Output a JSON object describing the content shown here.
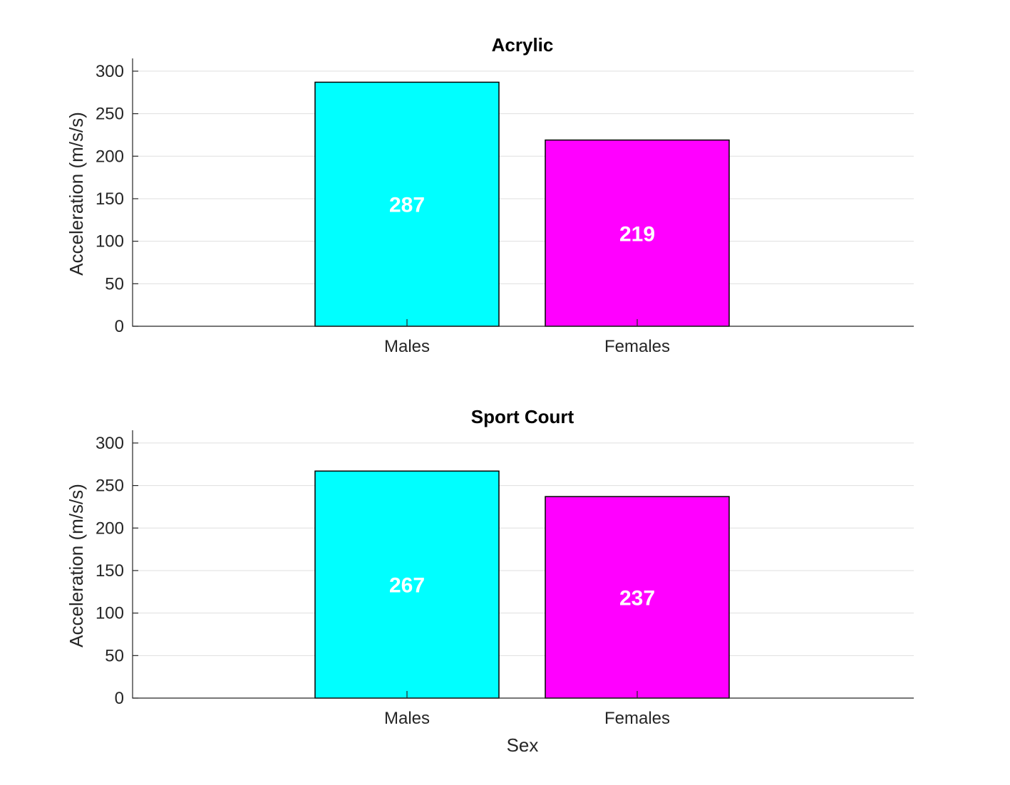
{
  "chart_data": [
    {
      "type": "bar",
      "title": "Acrylic",
      "categories": [
        "Males",
        "Females"
      ],
      "values": [
        287,
        219
      ],
      "colors": [
        "#00ffff",
        "#ff00ff"
      ],
      "ylabel": "Acceleration (m/s/s)",
      "xlabel": "",
      "ylim": [
        0,
        315
      ],
      "yticks": [
        0,
        50,
        100,
        150,
        200,
        250,
        300
      ],
      "grid": "y",
      "data_labels": [
        "287",
        "219"
      ]
    },
    {
      "type": "bar",
      "title": "Sport Court",
      "categories": [
        "Males",
        "Females"
      ],
      "values": [
        267,
        237
      ],
      "colors": [
        "#00ffff",
        "#ff00ff"
      ],
      "ylabel": "Acceleration (m/s/s)",
      "xlabel": "Sex",
      "ylim": [
        0,
        315
      ],
      "yticks": [
        0,
        50,
        100,
        150,
        200,
        250,
        300
      ],
      "grid": "y",
      "data_labels": [
        "267",
        "237"
      ]
    }
  ]
}
